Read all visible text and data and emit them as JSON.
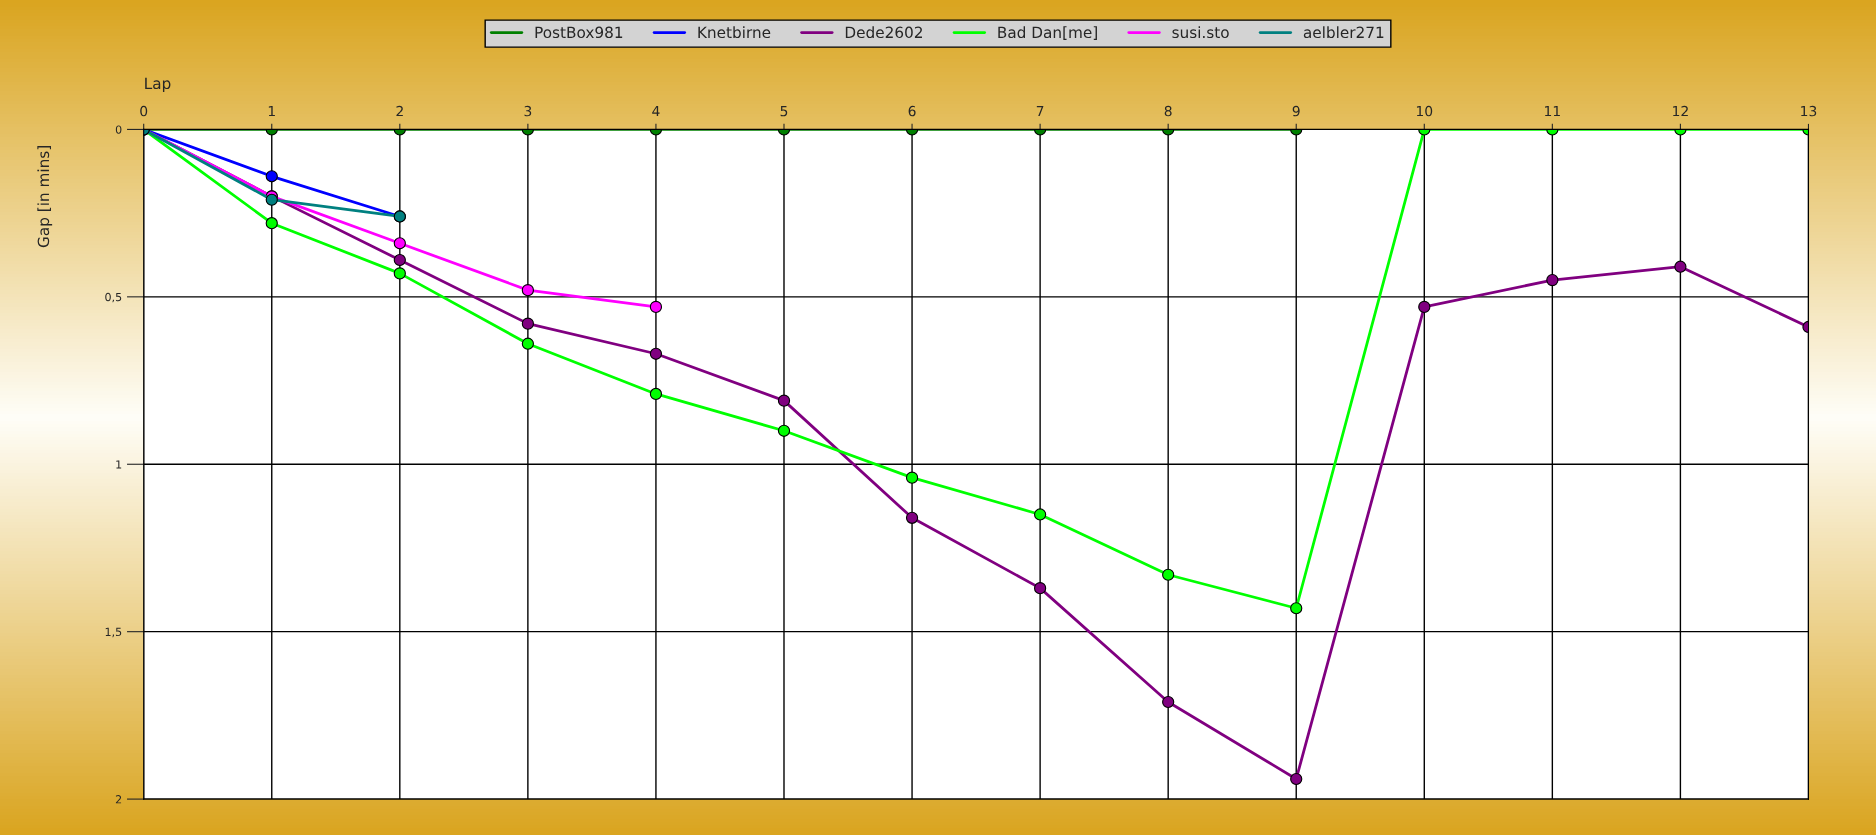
{
  "chart_data": {
    "type": "line",
    "xlabel": "Lap",
    "ylabel": "Gap [in mins]",
    "xlim": [
      0,
      13
    ],
    "xticks": [
      0,
      1,
      2,
      3,
      4,
      5,
      6,
      7,
      8,
      9,
      10,
      11,
      12,
      13
    ],
    "ylim": [
      2,
      0
    ],
    "yticks": [
      0,
      {
        "value": 0.5,
        "label": "0,5"
      },
      1,
      {
        "value": 1.5,
        "label": "1,5"
      },
      2
    ],
    "grid": true,
    "legend": "top",
    "marker": "circle",
    "line_style": "solid",
    "series": [
      {
        "name": "PostBox981",
        "color": "#008000",
        "x": [
          0,
          1,
          2,
          3,
          4,
          5,
          6,
          7,
          8,
          9
        ],
        "values": [
          0,
          0,
          0,
          0,
          0,
          0,
          0,
          0,
          0,
          0
        ]
      },
      {
        "name": "Knetbirne",
        "color": "#0000ff",
        "x": [
          0,
          1,
          2
        ],
        "values": [
          0,
          0.14,
          0.26
        ]
      },
      {
        "name": "Dede2602",
        "color": "#800080",
        "x": [
          0,
          1,
          2,
          3,
          4,
          5,
          6,
          7,
          8,
          9,
          10,
          11,
          12,
          13
        ],
        "values": [
          0,
          0.2,
          0.39,
          0.58,
          0.67,
          0.81,
          1.16,
          1.37,
          1.71,
          1.94,
          0.53,
          0.45,
          0.41,
          0.59
        ]
      },
      {
        "name": "Bad Dan[me]",
        "color": "#00ff00",
        "x": [
          0,
          1,
          2,
          3,
          4,
          5,
          6,
          7,
          8,
          9,
          10,
          11,
          12,
          13
        ],
        "values": [
          0,
          0.28,
          0.43,
          0.64,
          0.79,
          0.9,
          1.04,
          1.15,
          1.33,
          1.43,
          0,
          0,
          0,
          0
        ]
      },
      {
        "name": "susi.sto",
        "color": "#ff00ff",
        "x": [
          0,
          1,
          2,
          3,
          4
        ],
        "values": [
          0,
          0.2,
          0.34,
          0.48,
          0.53
        ]
      },
      {
        "name": "aelbler271",
        "color": "#008080",
        "x": [
          0,
          1,
          2
        ],
        "values": [
          0,
          0.21,
          0.26
        ]
      }
    ]
  }
}
